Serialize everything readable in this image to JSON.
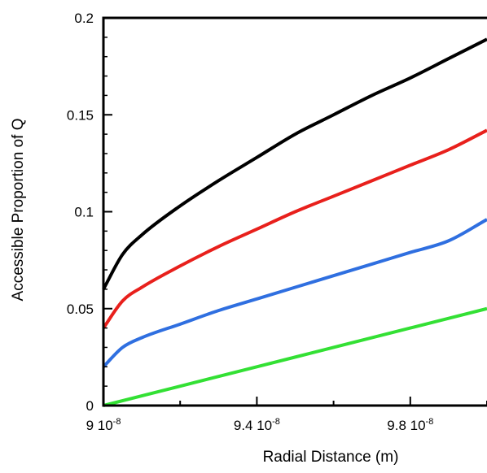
{
  "chart_data": {
    "type": "line",
    "title": "",
    "xlabel": "Radial Distance  (m)",
    "ylabel": "Accessible Proportion of Q",
    "xlim": [
      9e-08,
      1e-07
    ],
    "ylim": [
      0,
      0.2
    ],
    "grid": false,
    "x_ticks": [
      {
        "value": 9e-08,
        "mantissa": "9",
        "base": "10",
        "exponent": "-8"
      },
      {
        "value": 9.4e-08,
        "mantissa": "9.4",
        "base": "10",
        "exponent": "-8"
      },
      {
        "value": 9.8e-08,
        "mantissa": "9.8",
        "base": "10",
        "exponent": "-8"
      }
    ],
    "y_ticks": [
      {
        "value": 0,
        "label": "0"
      },
      {
        "value": 0.05,
        "label": "0.05"
      },
      {
        "value": 0.1,
        "label": "0.1"
      },
      {
        "value": 0.15,
        "label": "0.15"
      },
      {
        "value": 0.2,
        "label": "0.2"
      }
    ],
    "series": [
      {
        "color": "#000000",
        "x": [
          9e-08,
          9.05e-08,
          9.1e-08,
          9.2e-08,
          9.3e-08,
          9.4e-08,
          9.5e-08,
          9.6e-08,
          9.7e-08,
          9.8e-08,
          9.9e-08,
          1e-07
        ],
        "y": [
          0.06,
          0.078,
          0.088,
          0.103,
          0.116,
          0.128,
          0.14,
          0.15,
          0.16,
          0.169,
          0.179,
          0.189
        ]
      },
      {
        "color": "#e8201c",
        "x": [
          9e-08,
          9.05e-08,
          9.1e-08,
          9.2e-08,
          9.3e-08,
          9.4e-08,
          9.5e-08,
          9.6e-08,
          9.7e-08,
          9.8e-08,
          9.9e-08,
          1e-07
        ],
        "y": [
          0.04,
          0.054,
          0.061,
          0.072,
          0.082,
          0.091,
          0.1,
          0.108,
          0.116,
          0.124,
          0.132,
          0.142
        ]
      },
      {
        "color": "#2f6fe0",
        "x": [
          9e-08,
          9.05e-08,
          9.1e-08,
          9.2e-08,
          9.3e-08,
          9.4e-08,
          9.5e-08,
          9.6e-08,
          9.7e-08,
          9.8e-08,
          9.9e-08,
          1e-07
        ],
        "y": [
          0.02,
          0.03,
          0.035,
          0.042,
          0.049,
          0.055,
          0.061,
          0.067,
          0.073,
          0.079,
          0.085,
          0.096
        ]
      },
      {
        "color": "#33e034",
        "x": [
          9e-08,
          9.2e-08,
          9.4e-08,
          9.6e-08,
          9.8e-08,
          1e-07
        ],
        "y": [
          0.0,
          0.01,
          0.02,
          0.03,
          0.04,
          0.05
        ]
      }
    ]
  }
}
